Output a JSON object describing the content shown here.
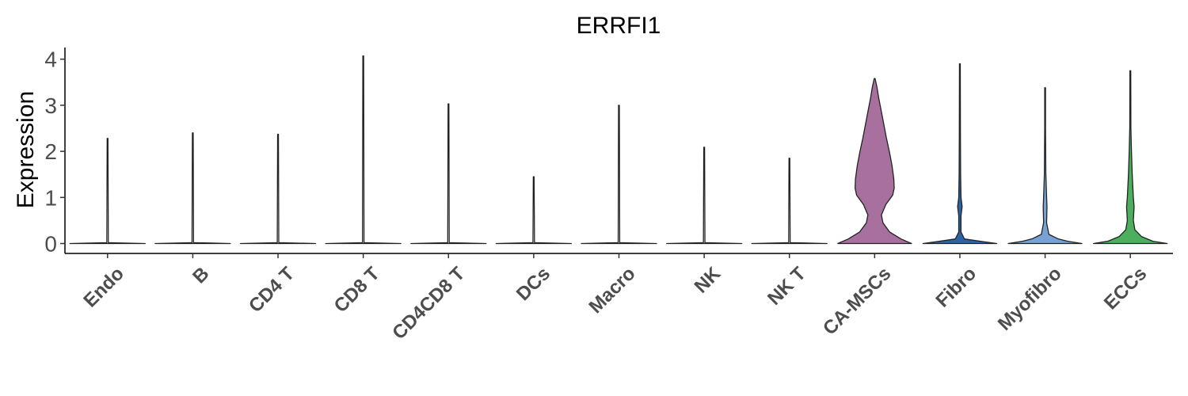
{
  "chart_data": {
    "type": "violin",
    "title": "ERRFI1",
    "xlabel": "",
    "ylabel": "Expression",
    "ylim": [
      -0.2,
      4.25
    ],
    "yticks": [
      0,
      1,
      2,
      3,
      4
    ],
    "grid": false,
    "legend": "none",
    "categories": [
      "Endo",
      "B",
      "CD4 T",
      "CD8 T",
      "CD4CD8 T",
      "DCs",
      "Macro",
      "NK",
      "NK T",
      "CA-MSCs",
      "Fibro",
      "Myofibro",
      "ECCs"
    ],
    "series": [
      {
        "category": "Endo",
        "color": "#ffffff",
        "max": 2.28,
        "profile": [
          [
            0,
            1.0
          ],
          [
            0.02,
            0.02
          ],
          [
            2.28,
            0.01
          ]
        ]
      },
      {
        "category": "B",
        "color": "#ffffff",
        "max": 2.4,
        "profile": [
          [
            0,
            1.0
          ],
          [
            0.02,
            0.02
          ],
          [
            2.4,
            0.01
          ]
        ]
      },
      {
        "category": "CD4 T",
        "color": "#ffffff",
        "max": 2.37,
        "profile": [
          [
            0,
            1.0
          ],
          [
            0.02,
            0.02
          ],
          [
            2.37,
            0.01
          ]
        ]
      },
      {
        "category": "CD8 T",
        "color": "#ffffff",
        "max": 4.07,
        "profile": [
          [
            0,
            1.0
          ],
          [
            0.02,
            0.02
          ],
          [
            4.07,
            0.01
          ]
        ]
      },
      {
        "category": "CD4CD8 T",
        "color": "#ffffff",
        "max": 3.03,
        "profile": [
          [
            0,
            1.0
          ],
          [
            0.02,
            0.02
          ],
          [
            3.03,
            0.01
          ]
        ]
      },
      {
        "category": "DCs",
        "color": "#ffffff",
        "max": 1.45,
        "profile": [
          [
            0,
            1.0
          ],
          [
            0.02,
            0.02
          ],
          [
            1.45,
            0.01
          ]
        ]
      },
      {
        "category": "Macro",
        "color": "#ffffff",
        "max": 3.0,
        "profile": [
          [
            0,
            1.0
          ],
          [
            0.02,
            0.02
          ],
          [
            3.0,
            0.01
          ]
        ]
      },
      {
        "category": "NK",
        "color": "#ffffff",
        "max": 2.09,
        "profile": [
          [
            0,
            1.0
          ],
          [
            0.02,
            0.02
          ],
          [
            2.09,
            0.01
          ]
        ]
      },
      {
        "category": "NK T",
        "color": "#ffffff",
        "max": 1.85,
        "profile": [
          [
            0,
            1.0
          ],
          [
            0.02,
            0.02
          ],
          [
            1.85,
            0.01
          ]
        ]
      },
      {
        "category": "CA-MSCs",
        "color": "#a8709e",
        "max": 3.58,
        "profile": [
          [
            0,
            0.98
          ],
          [
            0.1,
            0.7
          ],
          [
            0.25,
            0.4
          ],
          [
            0.45,
            0.22
          ],
          [
            0.62,
            0.18
          ],
          [
            0.85,
            0.3
          ],
          [
            1.05,
            0.48
          ],
          [
            1.2,
            0.52
          ],
          [
            1.4,
            0.51
          ],
          [
            1.7,
            0.46
          ],
          [
            2.0,
            0.39
          ],
          [
            2.3,
            0.31
          ],
          [
            2.6,
            0.24
          ],
          [
            2.9,
            0.17
          ],
          [
            3.15,
            0.11
          ],
          [
            3.4,
            0.06
          ],
          [
            3.58,
            0.01
          ]
        ]
      },
      {
        "category": "Fibro",
        "color": "#2b64a6",
        "max": 3.9,
        "profile": [
          [
            0,
            0.98
          ],
          [
            0.05,
            0.55
          ],
          [
            0.1,
            0.12
          ],
          [
            0.25,
            0.03
          ],
          [
            0.6,
            0.03
          ],
          [
            0.8,
            0.06
          ],
          [
            1.0,
            0.03
          ],
          [
            1.5,
            0.02
          ],
          [
            2.3,
            0.015
          ],
          [
            3.9,
            0.005
          ]
        ]
      },
      {
        "category": "Myofibro",
        "color": "#77a2d4",
        "max": 3.38,
        "profile": [
          [
            0,
            0.98
          ],
          [
            0.05,
            0.6
          ],
          [
            0.1,
            0.35
          ],
          [
            0.2,
            0.1
          ],
          [
            0.45,
            0.04
          ],
          [
            0.8,
            0.05
          ],
          [
            1.0,
            0.04
          ],
          [
            1.5,
            0.02
          ],
          [
            2.5,
            0.01
          ],
          [
            3.38,
            0.005
          ]
        ]
      },
      {
        "category": "ECCs",
        "color": "#4caf5d",
        "max": 3.75,
        "profile": [
          [
            0,
            0.98
          ],
          [
            0.05,
            0.6
          ],
          [
            0.15,
            0.3
          ],
          [
            0.3,
            0.12
          ],
          [
            0.5,
            0.08
          ],
          [
            0.8,
            0.1
          ],
          [
            1.0,
            0.08
          ],
          [
            1.5,
            0.05
          ],
          [
            2.0,
            0.03
          ],
          [
            2.5,
            0.015
          ],
          [
            3.75,
            0.005
          ]
        ]
      }
    ]
  }
}
